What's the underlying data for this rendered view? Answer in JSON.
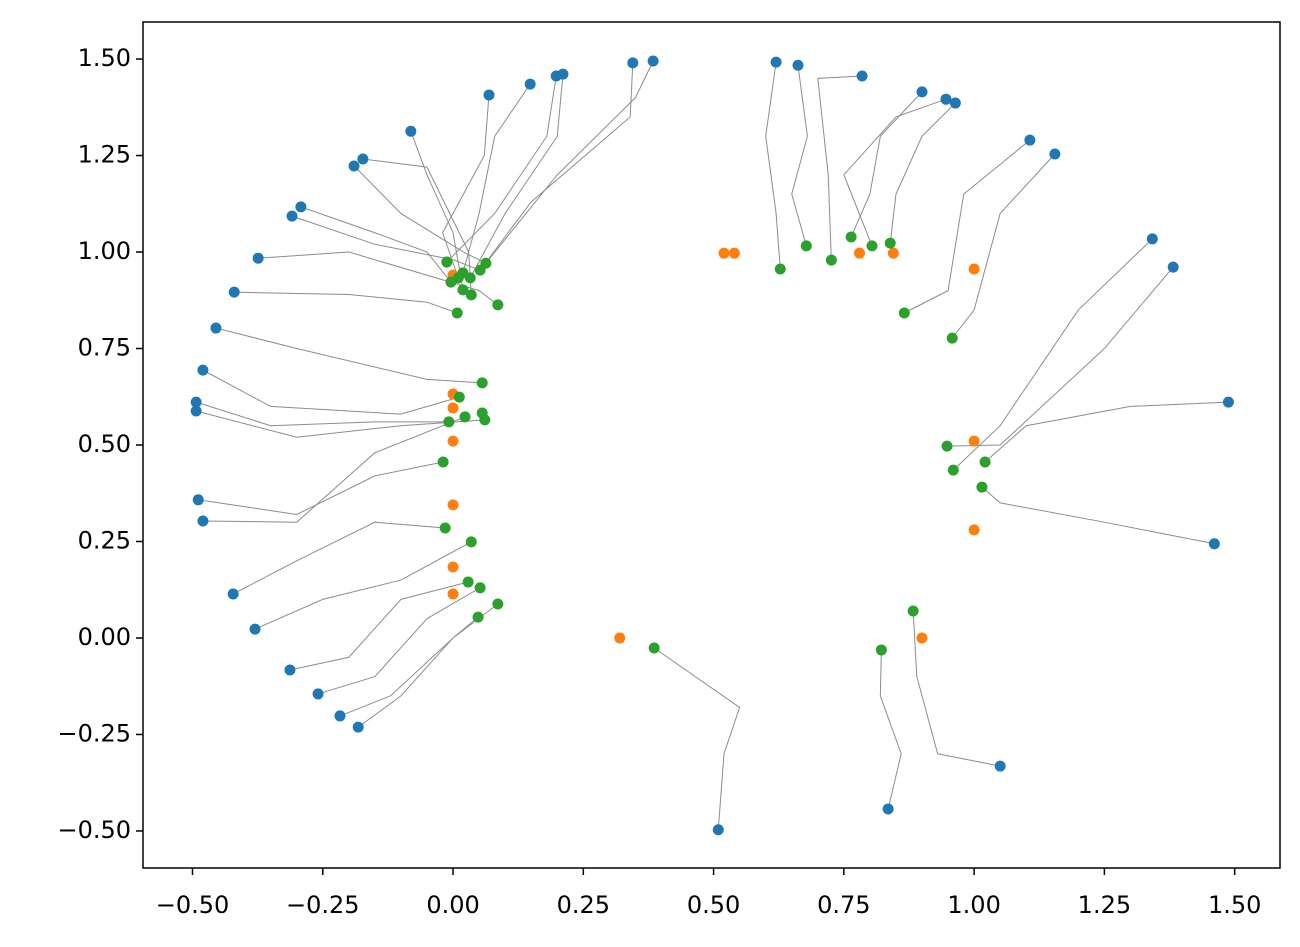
{
  "chart_data": {
    "type": "scatter",
    "xlim": [
      -0.595,
      1.587
    ],
    "ylim": [
      -0.596,
      1.596
    ],
    "xticks": [
      {
        "value": -0.5,
        "label": "−0.50"
      },
      {
        "value": -0.25,
        "label": "−0.25"
      },
      {
        "value": 0,
        "label": "0.00"
      },
      0.25,
      {
        "value": 0.5,
        "label": "0.50"
      },
      0.75,
      {
        "value": 1,
        "label": "1.00"
      },
      1.25,
      {
        "value": 1.5,
        "label": "1.50"
      }
    ],
    "yticks": [
      {
        "value": -0.5,
        "label": "−0.50"
      },
      {
        "value": -0.25,
        "label": "−0.25"
      },
      {
        "value": 0,
        "label": "0.00"
      },
      0.25,
      {
        "value": 0.5,
        "label": "0.50"
      },
      0.75,
      {
        "value": 1,
        "label": "1.00"
      },
      1.25,
      {
        "value": 1.5,
        "label": "1.50"
      }
    ],
    "trajectories": {
      "color": "#8c8c8c",
      "lines": [
        {
          "x": [
            0.384,
            0.35,
            0.2,
            0.063
          ],
          "y": [
            1.495,
            1.4,
            1.2,
            0.971
          ]
        },
        {
          "x": [
            0.345,
            0.34,
            0.15,
            0.052
          ],
          "y": [
            1.49,
            1.35,
            1.13,
            0.953
          ]
        },
        {
          "x": [
            0.211,
            0.2,
            0.1,
            0.033
          ],
          "y": [
            1.461,
            1.3,
            1.1,
            0.933
          ]
        },
        {
          "x": [
            0.148,
            0.08,
            0.05,
            0.019
          ],
          "y": [
            1.435,
            1.3,
            1.1,
            0.946
          ]
        },
        {
          "x": [
            0.069,
            0.06,
            -0.02,
            0.01
          ],
          "y": [
            1.407,
            1.25,
            1.05,
            0.933
          ]
        },
        {
          "x": [
            -0.081,
            -0.05,
            0.0,
            0.019
          ],
          "y": [
            1.313,
            1.2,
            1.05,
            0.902
          ]
        },
        {
          "x": [
            -0.173,
            -0.05,
            0.03,
            0.035
          ],
          "y": [
            1.241,
            1.22,
            1.0,
            0.889
          ]
        },
        {
          "x": [
            -0.292,
            -0.15,
            -0.05,
            -0.004
          ],
          "y": [
            1.117,
            1.05,
            1.0,
            0.922
          ]
        },
        {
          "x": [
            -0.374,
            -0.2,
            0.05,
            0.086
          ],
          "y": [
            0.984,
            1.0,
            0.9,
            0.863
          ]
        },
        {
          "x": [
            -0.42,
            -0.2,
            -0.05,
            0.008
          ],
          "y": [
            0.896,
            0.89,
            0.87,
            0.842
          ]
        },
        {
          "x": [
            -0.455,
            -0.3,
            -0.05,
            0.056
          ],
          "y": [
            0.803,
            0.75,
            0.67,
            0.661
          ]
        },
        {
          "x": [
            -0.48,
            -0.35,
            -0.1,
            0.012
          ],
          "y": [
            0.694,
            0.6,
            0.58,
            0.624
          ]
        },
        {
          "x": [
            -0.493,
            -0.35,
            -0.15,
            -0.008
          ],
          "y": [
            0.611,
            0.55,
            0.56,
            0.56
          ]
        },
        {
          "x": [
            -0.493,
            -0.3,
            -0.1,
            0.061
          ],
          "y": [
            0.588,
            0.52,
            0.55,
            0.565
          ]
        },
        {
          "x": [
            -0.489,
            -0.3,
            -0.15,
            -0.019
          ],
          "y": [
            0.358,
            0.32,
            0.42,
            0.456
          ]
        },
        {
          "x": [
            -0.48,
            -0.3,
            -0.15,
            0.023
          ],
          "y": [
            0.303,
            0.3,
            0.48,
            0.573
          ]
        },
        {
          "x": [
            -0.422,
            -0.3,
            -0.15,
            -0.015
          ],
          "y": [
            0.114,
            0.2,
            0.3,
            0.285
          ]
        },
        {
          "x": [
            -0.38,
            -0.25,
            -0.1,
            0.035
          ],
          "y": [
            0.023,
            0.1,
            0.15,
            0.249
          ]
        },
        {
          "x": [
            -0.313,
            -0.2,
            -0.1,
            0.029
          ],
          "y": [
            -0.083,
            -0.05,
            0.1,
            0.145
          ]
        },
        {
          "x": [
            -0.259,
            -0.15,
            -0.05,
            0.052
          ],
          "y": [
            -0.145,
            -0.1,
            0.05,
            0.13
          ]
        },
        {
          "x": [
            -0.217,
            -0.12,
            0.0,
            0.086
          ],
          "y": [
            -0.202,
            -0.15,
            0.0,
            0.088
          ]
        },
        {
          "x": [
            -0.182,
            -0.1,
            0.0,
            0.048
          ],
          "y": [
            -0.231,
            -0.15,
            0.0,
            0.054
          ]
        },
        {
          "x": [
            0.509,
            0.52,
            0.55,
            0.386
          ],
          "y": [
            -0.497,
            -0.3,
            -0.18,
            -0.026
          ]
        },
        {
          "x": [
            0.835,
            0.86,
            0.82,
            0.822
          ],
          "y": [
            -0.443,
            -0.3,
            -0.15,
            -0.031
          ]
        },
        {
          "x": [
            1.05,
            0.93,
            0.89,
            0.883
          ],
          "y": [
            -0.332,
            -0.3,
            -0.1,
            0.07
          ]
        },
        {
          "x": [
            1.461,
            1.25,
            1.05,
            1.015
          ],
          "y": [
            0.244,
            0.3,
            0.35,
            0.391
          ]
        },
        {
          "x": [
            1.488,
            1.3,
            1.1,
            1.021
          ],
          "y": [
            0.611,
            0.6,
            0.55,
            0.456
          ]
        },
        {
          "x": [
            1.382,
            1.25,
            1.05,
            0.948
          ],
          "y": [
            0.961,
            0.75,
            0.5,
            0.497
          ]
        },
        {
          "x": [
            1.342,
            1.2,
            1.05,
            0.96
          ],
          "y": [
            1.034,
            0.85,
            0.55,
            0.435
          ]
        },
        {
          "x": [
            1.155,
            1.05,
            1.0,
            0.958
          ],
          "y": [
            1.254,
            1.1,
            0.85,
            0.777
          ]
        },
        {
          "x": [
            1.107,
            0.98,
            0.95,
            0.866
          ],
          "y": [
            1.29,
            1.15,
            0.9,
            0.842
          ]
        },
        {
          "x": [
            0.964,
            0.9,
            0.85,
            0.839
          ],
          "y": [
            1.386,
            1.3,
            1.15,
            1.023
          ]
        },
        {
          "x": [
            0.946,
            0.85,
            0.75,
            0.804
          ],
          "y": [
            1.396,
            1.35,
            1.2,
            1.016
          ]
        },
        {
          "x": [
            0.9,
            0.82,
            0.8,
            0.764
          ],
          "y": [
            1.415,
            1.3,
            1.15,
            1.039
          ]
        },
        {
          "x": [
            0.785,
            0.7,
            0.72,
            0.726
          ],
          "y": [
            1.456,
            1.45,
            1.2,
            0.979
          ]
        },
        {
          "x": [
            0.662,
            0.68,
            0.65,
            0.678
          ],
          "y": [
            1.484,
            1.3,
            1.15,
            1.016
          ]
        },
        {
          "x": [
            0.62,
            0.6,
            0.62,
            0.628
          ],
          "y": [
            1.492,
            1.3,
            1.1,
            0.956
          ]
        },
        {
          "x": [
            0.198,
            0.18,
            0.08,
            -0.012
          ],
          "y": [
            1.456,
            1.3,
            1.1,
            0.974
          ]
        },
        {
          "x": [
            -0.19,
            -0.1,
            0.02,
            0.063
          ],
          "y": [
            1.223,
            1.1,
            1.0,
            0.971
          ]
        },
        {
          "x": [
            -0.309,
            -0.15,
            0.0,
            0.052
          ],
          "y": [
            1.093,
            1.02,
            0.98,
            0.953
          ]
        }
      ]
    },
    "series": [
      {
        "color": "#1f77b4",
        "x": [
          0.384,
          0.345,
          0.211,
          0.198,
          0.148,
          0.069,
          -0.081,
          -0.173,
          -0.19,
          -0.292,
          -0.309,
          -0.374,
          -0.42,
          -0.455,
          -0.48,
          -0.493,
          -0.493,
          -0.489,
          -0.48,
          -0.422,
          -0.38,
          -0.313,
          -0.259,
          -0.217,
          -0.182,
          0.509,
          0.835,
          1.05,
          1.461,
          1.488,
          1.382,
          1.342,
          1.155,
          1.107,
          0.964,
          0.946,
          0.9,
          0.785,
          0.662,
          0.62
        ],
        "y": [
          1.495,
          1.49,
          1.461,
          1.456,
          1.435,
          1.407,
          1.313,
          1.241,
          1.223,
          1.117,
          1.093,
          0.984,
          0.896,
          0.803,
          0.694,
          0.611,
          0.588,
          0.358,
          0.303,
          0.114,
          0.023,
          -0.083,
          -0.145,
          -0.202,
          -0.231,
          -0.497,
          -0.443,
          -0.332,
          0.244,
          0.611,
          0.961,
          1.034,
          1.254,
          1.29,
          1.386,
          1.396,
          1.415,
          1.456,
          1.484,
          1.492
        ]
      },
      {
        "color": "#ff7f0e",
        "x": [
          0,
          0,
          0,
          0,
          0,
          0,
          0,
          0.32,
          0.9,
          1.0,
          1.0,
          1.0,
          0.845,
          0.78,
          0.54,
          0.52
        ],
        "y": [
          0.94,
          0.632,
          0.596,
          0.51,
          0.345,
          0.184,
          0.114,
          0.0,
          0.0,
          0.28,
          0.51,
          0.956,
          0.997,
          0.997,
          0.997,
          0.997
        ]
      },
      {
        "color": "#2ca02c",
        "x": [
          -0.012,
          -0.004,
          0.01,
          0.019,
          0.033,
          0.052,
          0.063,
          0.019,
          0.035,
          0.086,
          0.008,
          0.056,
          0.012,
          -0.008,
          0.023,
          0.056,
          0.061,
          -0.019,
          -0.015,
          0.035,
          0.029,
          0.052,
          0.086,
          0.048,
          0.386,
          0.822,
          0.883,
          0.948,
          1.021,
          0.96,
          1.015,
          0.958,
          0.866,
          0.628,
          0.678,
          0.726,
          0.764,
          0.804,
          0.839
        ],
        "y": [
          0.974,
          0.922,
          0.933,
          0.946,
          0.933,
          0.953,
          0.971,
          0.902,
          0.889,
          0.863,
          0.842,
          0.661,
          0.624,
          0.56,
          0.573,
          0.583,
          0.565,
          0.456,
          0.285,
          0.249,
          0.145,
          0.13,
          0.088,
          0.054,
          -0.026,
          -0.031,
          0.07,
          0.497,
          0.456,
          0.435,
          0.391,
          0.777,
          0.842,
          0.956,
          1.016,
          0.979,
          1.039,
          1.016,
          1.023
        ]
      }
    ]
  }
}
